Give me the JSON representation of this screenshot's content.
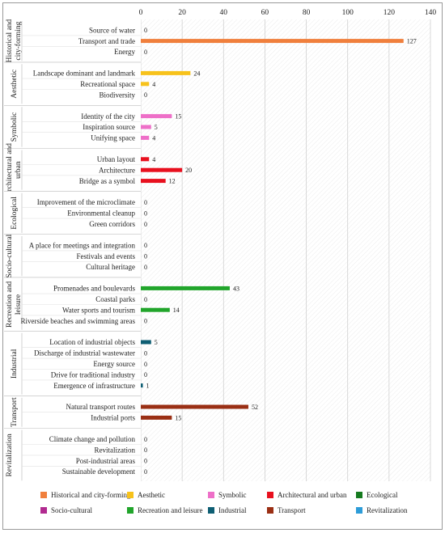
{
  "chart_data": {
    "type": "bar",
    "orientation": "horizontal",
    "xlim": [
      0,
      140
    ],
    "x_ticks": [
      0,
      20,
      40,
      60,
      80,
      100,
      120,
      140
    ],
    "x_axis_position": "top",
    "grid": true,
    "legend_position": "bottom",
    "groups": [
      {
        "name": "Historical and city-forming",
        "color": "#F07F3C",
        "items": [
          {
            "label": "Source of water",
            "value": 0
          },
          {
            "label": "Transport and trade",
            "value": 127
          },
          {
            "label": "Energy",
            "value": 0
          }
        ]
      },
      {
        "name": "Aesthetic",
        "color": "#F7C21B",
        "items": [
          {
            "label": "Landscape dominant and landmark",
            "value": 24
          },
          {
            "label": "Recreational space",
            "value": 4
          },
          {
            "label": "Biodiversity",
            "value": 0
          }
        ]
      },
      {
        "name": "Symbolic",
        "color": "#EE6FC8",
        "items": [
          {
            "label": "Identity of the city",
            "value": 15
          },
          {
            "label": "Inspiration source",
            "value": 5
          },
          {
            "label": "Unifying space",
            "value": 4
          }
        ]
      },
      {
        "name": "Architectural and urban",
        "color": "#E8101E",
        "items": [
          {
            "label": "Urban layout",
            "value": 4
          },
          {
            "label": "Architecture",
            "value": 20
          },
          {
            "label": "Bridge as a symbol",
            "value": 12
          }
        ]
      },
      {
        "name": "Ecological",
        "color": "#157A1F",
        "items": [
          {
            "label": "Improvement of the microclimate",
            "value": 0
          },
          {
            "label": "Environmental cleanup",
            "value": 0
          },
          {
            "label": "Green corridors",
            "value": 0
          }
        ]
      },
      {
        "name": "Socio-cultural",
        "color": "#B12A90",
        "items": [
          {
            "label": "A place for meetings and integration",
            "value": 0
          },
          {
            "label": "Festivals and events",
            "value": 0
          },
          {
            "label": "Cultural heritage",
            "value": 0
          }
        ]
      },
      {
        "name": "Recreation and leisure",
        "color": "#21A52B",
        "items": [
          {
            "label": "Promenades and boulevards",
            "value": 43
          },
          {
            "label": "Coastal parks",
            "value": 0
          },
          {
            "label": "Water sports and tourism",
            "value": 14
          },
          {
            "label": "Riverside beaches and swimming areas",
            "value": 0
          }
        ]
      },
      {
        "name": "Industrial",
        "color": "#0E5E73",
        "items": [
          {
            "label": "Location of industrial objects",
            "value": 5
          },
          {
            "label": "Discharge of industrial wastewater",
            "value": 0
          },
          {
            "label": "Energy source",
            "value": 0
          },
          {
            "label": "Drive for traditional industry",
            "value": 0
          },
          {
            "label": "Emergence of infrastructure",
            "value": 1
          }
        ]
      },
      {
        "name": "Transport",
        "color": "#9A2F14",
        "items": [
          {
            "label": "Natural transport routes",
            "value": 52
          },
          {
            "label": "Industrial ports",
            "value": 15
          }
        ]
      },
      {
        "name": "Revitalization",
        "color": "#2D9CD8",
        "items": [
          {
            "label": "Climate change and pollution",
            "value": 0
          },
          {
            "label": "Revitalization",
            "value": 0
          },
          {
            "label": "Post-industrial areas",
            "value": 0
          },
          {
            "label": "Sustainable development",
            "value": 0
          }
        ]
      }
    ],
    "legend": [
      {
        "label": "Historical and city-forming",
        "color": "#F07F3C"
      },
      {
        "label": "Aesthetic",
        "color": "#F7C21B"
      },
      {
        "label": "Symbolic",
        "color": "#EE6FC8"
      },
      {
        "label": "Architectural and urban",
        "color": "#E8101E"
      },
      {
        "label": "Ecological",
        "color": "#157A1F"
      },
      {
        "label": "Socio-cultural",
        "color": "#B12A90"
      },
      {
        "label": "Recreation and leisure",
        "color": "#21A52B"
      },
      {
        "label": "Industrial",
        "color": "#0E5E73"
      },
      {
        "label": "Transport",
        "color": "#9A2F14"
      },
      {
        "label": "Revitalization",
        "color": "#2D9CD8"
      }
    ]
  }
}
